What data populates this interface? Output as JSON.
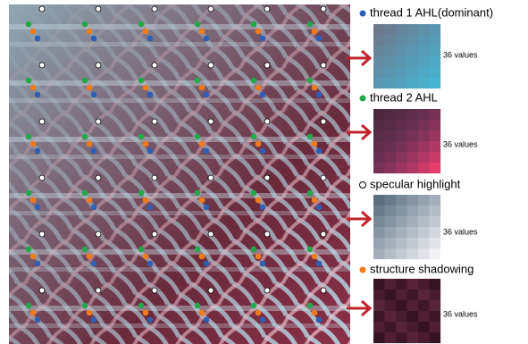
{
  "legend": [
    {
      "label": "thread 1 AHL(dominant)"
    },
    {
      "label": "thread 2 AHL"
    },
    {
      "label": "specular highlight"
    },
    {
      "label": "structure shadowing"
    }
  ],
  "panels": [
    {
      "caption": "36 values"
    },
    {
      "caption": "36 values"
    },
    {
      "caption": "36 values"
    },
    {
      "caption": "36 values"
    }
  ]
}
